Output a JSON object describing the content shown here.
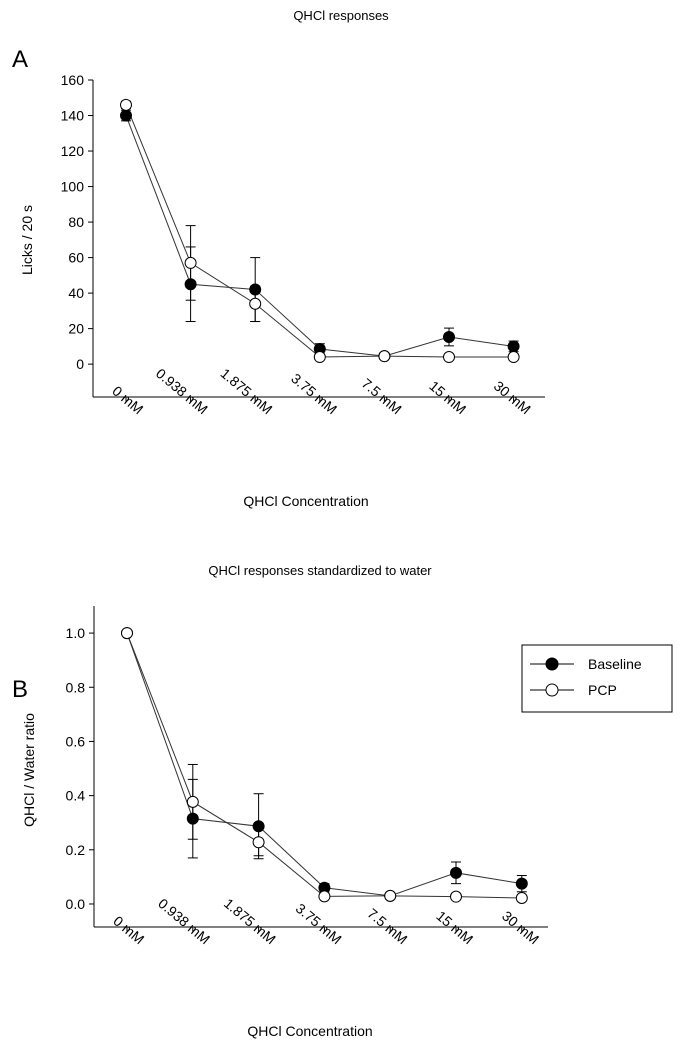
{
  "legend": {
    "entries": [
      "Baseline",
      "PCP"
    ],
    "placement": "between panels, right"
  },
  "chart_data": [
    {
      "type": "line",
      "panel_label": "A",
      "title": "QHCl responses",
      "xlabel": "QHCl Concentration",
      "ylabel": "Licks / 20 s",
      "categories": [
        "0 mM",
        "0.938 mM",
        "1.875 mM",
        "3.75 mM",
        "7.5 mM",
        "15 mM",
        "30 mM"
      ],
      "yticks": [
        0,
        20,
        40,
        60,
        80,
        100,
        120,
        140,
        160
      ],
      "ylim": [
        -18.5,
        160
      ],
      "grid": false,
      "series": [
        {
          "name": "Baseline",
          "marker": "filled-circle",
          "values": [
            140,
            45,
            42,
            8.5,
            4.5,
            15.3,
            10
          ],
          "errors": [
            3,
            21,
            18,
            3,
            1,
            5,
            3
          ]
        },
        {
          "name": "PCP",
          "marker": "open-circle",
          "values": [
            146,
            57,
            34,
            4,
            4.5,
            4,
            4
          ],
          "errors": [
            2,
            21,
            10,
            1,
            1,
            1,
            1
          ]
        }
      ]
    },
    {
      "type": "line",
      "panel_label": "B",
      "title": "QHCl responses standardized to water",
      "xlabel": "QHCl Concentration",
      "ylabel": "QHCl / Water ratio",
      "categories": [
        "0 mM",
        "0.938 mM",
        "1.875 mM",
        "3.75 mM",
        "7.5 mM",
        "15 mM",
        "30 mM"
      ],
      "yticks": [
        "0.0",
        "0.2",
        "0.4",
        "0.6",
        "0.8",
        "1.0"
      ],
      "ylim": [
        -0.085,
        1.1
      ],
      "grid": false,
      "series": [
        {
          "name": "Baseline",
          "marker": "filled-circle",
          "values": [
            1.0,
            0.315,
            0.287,
            0.06,
            0.03,
            0.115,
            0.075
          ],
          "errors": [
            0,
            0.145,
            0.12,
            0.015,
            0.005,
            0.04,
            0.03
          ]
        },
        {
          "name": "PCP",
          "marker": "open-circle",
          "values": [
            1.0,
            0.377,
            0.228,
            0.028,
            0.03,
            0.027,
            0.022
          ],
          "errors": [
            0,
            0.138,
            0.05,
            0.005,
            0.005,
            0.005,
            0.005
          ]
        }
      ]
    }
  ]
}
